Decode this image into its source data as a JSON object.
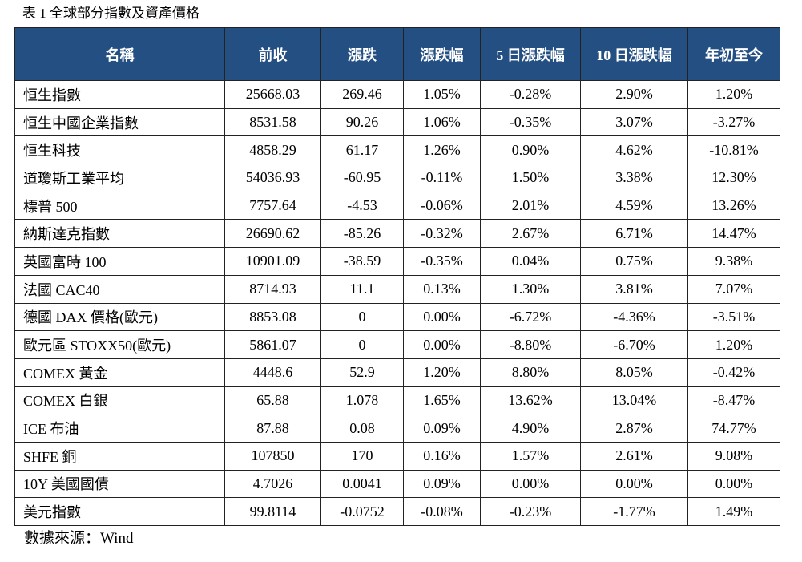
{
  "caption": "表 1 全球部分指數及資產價格",
  "table": {
    "headers": [
      "名稱",
      "前收",
      "漲跌",
      "漲跌幅",
      "5 日漲跌幅",
      "10 日漲跌幅",
      "年初至今"
    ],
    "rows": [
      [
        "恒生指數",
        "25668.03",
        "269.46",
        "1.05%",
        "-0.28%",
        "2.90%",
        "1.20%"
      ],
      [
        "恒生中國企業指數",
        "8531.58",
        "90.26",
        "1.06%",
        "-0.35%",
        "3.07%",
        "-3.27%"
      ],
      [
        "恒生科技",
        "4858.29",
        "61.17",
        "1.26%",
        "0.90%",
        "4.62%",
        "-10.81%"
      ],
      [
        "道瓊斯工業平均",
        "54036.93",
        "-60.95",
        "-0.11%",
        "1.50%",
        "3.38%",
        "12.30%"
      ],
      [
        "標普 500",
        "7757.64",
        "-4.53",
        "-0.06%",
        "2.01%",
        "4.59%",
        "13.26%"
      ],
      [
        "納斯達克指數",
        "26690.62",
        "-85.26",
        "-0.32%",
        "2.67%",
        "6.71%",
        "14.47%"
      ],
      [
        "英國富時 100",
        "10901.09",
        "-38.59",
        "-0.35%",
        "0.04%",
        "0.75%",
        "9.38%"
      ],
      [
        "法國 CAC40",
        "8714.93",
        "11.1",
        "0.13%",
        "1.30%",
        "3.81%",
        "7.07%"
      ],
      [
        "德國 DAX 價格(歐元)",
        "8853.08",
        "0",
        "0.00%",
        "-6.72%",
        "-4.36%",
        "-3.51%"
      ],
      [
        "歐元區 STOXX50(歐元)",
        "5861.07",
        "0",
        "0.00%",
        "-8.80%",
        "-6.70%",
        "1.20%"
      ],
      [
        "COMEX 黃金",
        "4448.6",
        "52.9",
        "1.20%",
        "8.80%",
        "8.05%",
        "-0.42%"
      ],
      [
        "COMEX 白銀",
        "65.88",
        "1.078",
        "1.65%",
        "13.62%",
        "13.04%",
        "-8.47%"
      ],
      [
        "ICE 布油",
        "87.88",
        "0.08",
        "0.09%",
        "4.90%",
        "2.87%",
        "74.77%"
      ],
      [
        "SHFE 銅",
        "107850",
        "170",
        "0.16%",
        "1.57%",
        "2.61%",
        "9.08%"
      ],
      [
        "10Y 美國國債",
        "4.7026",
        "0.0041",
        "0.09%",
        "0.00%",
        "0.00%",
        "0.00%"
      ],
      [
        "美元指數",
        "99.8114",
        "-0.0752",
        "-0.08%",
        "-0.23%",
        "-1.77%",
        "1.49%"
      ]
    ]
  },
  "source": "數據來源：Wind",
  "colors": {
    "header_bg": "#244f82",
    "header_text": "#ffffff",
    "border": "#222222",
    "text": "#000000"
  }
}
